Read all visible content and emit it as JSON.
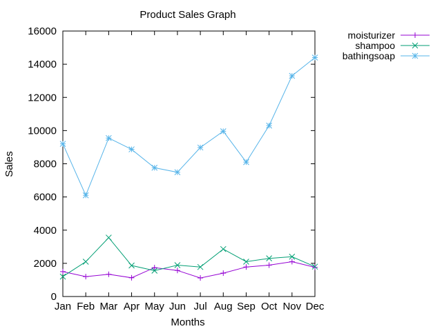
{
  "chart_data": {
    "type": "line",
    "title": "Product Sales Graph",
    "xlabel": "Months",
    "ylabel": "Sales",
    "categories": [
      "Jan",
      "Feb",
      "Mar",
      "Apr",
      "May",
      "Jun",
      "Jul",
      "Aug",
      "Sep",
      "Oct",
      "Nov",
      "Dec"
    ],
    "ylim": [
      0,
      16000
    ],
    "yticks": [
      "0",
      "2000",
      "4000",
      "6000",
      "8000",
      "10000",
      "12000",
      "14000",
      "16000"
    ],
    "grid": false,
    "legend_position": "outside-top-right",
    "series": [
      {
        "name": "moisturizer",
        "color": "#9400d3",
        "marker": "plus",
        "values": [
          1500,
          1200,
          1340,
          1130,
          1740,
          1570,
          1120,
          1410,
          1780,
          1890,
          2100,
          1760
        ]
      },
      {
        "name": "shampoo",
        "color": "#009e73",
        "marker": "cross",
        "values": [
          1200,
          2100,
          3550,
          1870,
          1560,
          1890,
          1780,
          2860,
          2100,
          2300,
          2400,
          1800
        ]
      },
      {
        "name": "bathingsoap",
        "color": "#56b4e9",
        "marker": "star",
        "values": [
          9200,
          6100,
          9550,
          8870,
          7760,
          7490,
          8980,
          9960,
          8100,
          10300,
          13300,
          14400
        ]
      }
    ]
  }
}
